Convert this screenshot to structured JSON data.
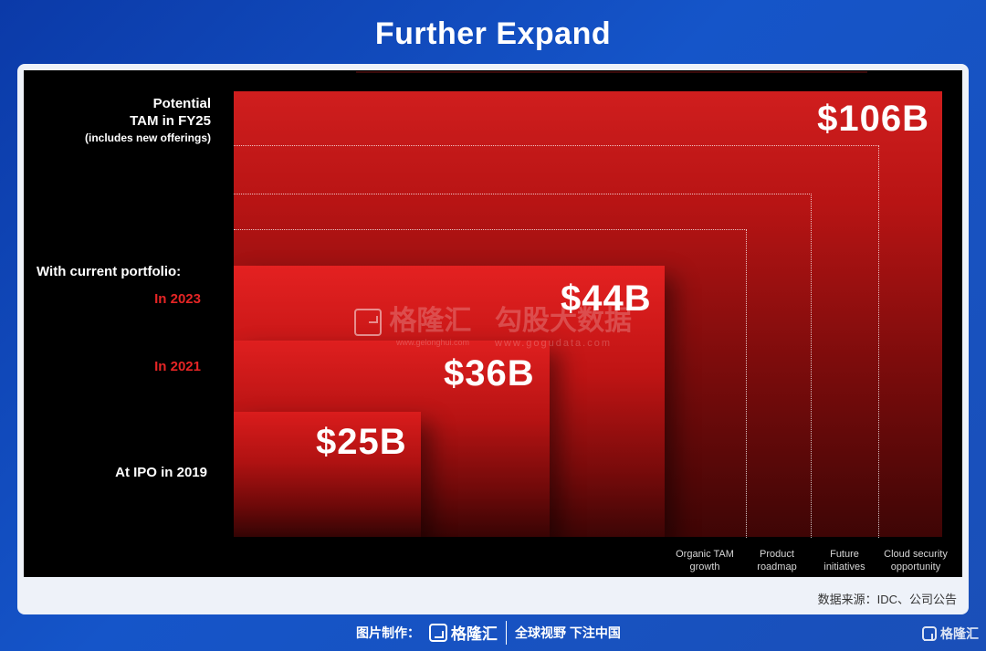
{
  "title": "Further Expand",
  "chart_data": {
    "type": "bar",
    "title": "Further Expand",
    "categories": [
      "At IPO in 2019",
      "In 2021",
      "In 2023",
      "Potential TAM in FY25"
    ],
    "values": [
      25,
      36,
      44,
      106
    ],
    "value_labels": [
      "$25B",
      "$36B",
      "$44B",
      "$106B"
    ],
    "unit": "$B",
    "group_label": "With current portfolio:",
    "potential_label_line1": "Potential",
    "potential_label_line2": "TAM in FY25",
    "potential_note": "(includes new offerings)",
    "growth_components": [
      {
        "line1": "Organic TAM",
        "line2": "growth"
      },
      {
        "line1": "Product",
        "line2": "roadmap"
      },
      {
        "line1": "Future",
        "line2": "initiatives"
      },
      {
        "line1": "Cloud security",
        "line2": "opportunity"
      }
    ]
  },
  "source": "数据来源：IDC、公司公告",
  "watermark": {
    "brand": "格隆汇",
    "brand_url": "www.gelonghui.com",
    "data_brand": "勾股大数据",
    "data_url": "www.gogudata.com"
  },
  "footer": {
    "made_by": "图片制作：",
    "brand": "格隆汇",
    "slogan": "全球视野 下注中国",
    "corner_brand": "格隆汇"
  },
  "colors": {
    "bar_red": "#d01e1e",
    "label_red": "#e52525",
    "background_blue": "#1555c9"
  }
}
